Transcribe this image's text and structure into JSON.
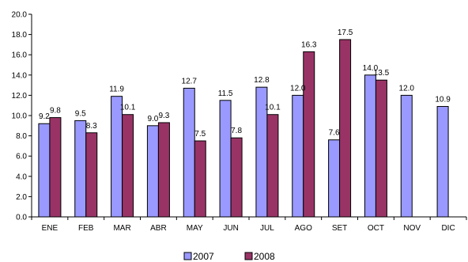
{
  "chart_data": {
    "type": "bar",
    "categories": [
      "ENE",
      "FEB",
      "MAR",
      "ABR",
      "MAY",
      "JUN",
      "JUL",
      "AGO",
      "SET",
      "OCT",
      "NOV",
      "DIC"
    ],
    "series": [
      {
        "name": "2007",
        "color": "#9999FF",
        "values": [
          9.2,
          9.5,
          11.9,
          9.0,
          12.7,
          11.5,
          12.8,
          12.0,
          7.6,
          14.0,
          12.0,
          10.9
        ],
        "labels": [
          "9.2",
          "9.5",
          "11.9",
          "9.0",
          "12.7",
          "11.5",
          "12.8",
          "12.0",
          "7.6",
          "14.0",
          "12.0",
          "10.9"
        ]
      },
      {
        "name": "2008",
        "color": "#993366",
        "values": [
          9.8,
          8.3,
          10.1,
          9.3,
          7.5,
          7.8,
          10.1,
          16.3,
          17.5,
          13.5,
          null,
          null
        ],
        "labels": [
          "9.8",
          "8.3",
          "10.1",
          "9.3",
          "7.5",
          "7.8",
          "10.1",
          "16.3",
          "17.5",
          "13.5",
          "",
          ""
        ]
      }
    ],
    "ylim": [
      0,
      20
    ],
    "yticks": [
      "0.0",
      "2.0",
      "4.0",
      "6.0",
      "8.0",
      "10.0",
      "12.0",
      "14.0",
      "16.0",
      "18.0",
      "20.0"
    ],
    "grid": false,
    "legend_position": "bottom-center"
  }
}
